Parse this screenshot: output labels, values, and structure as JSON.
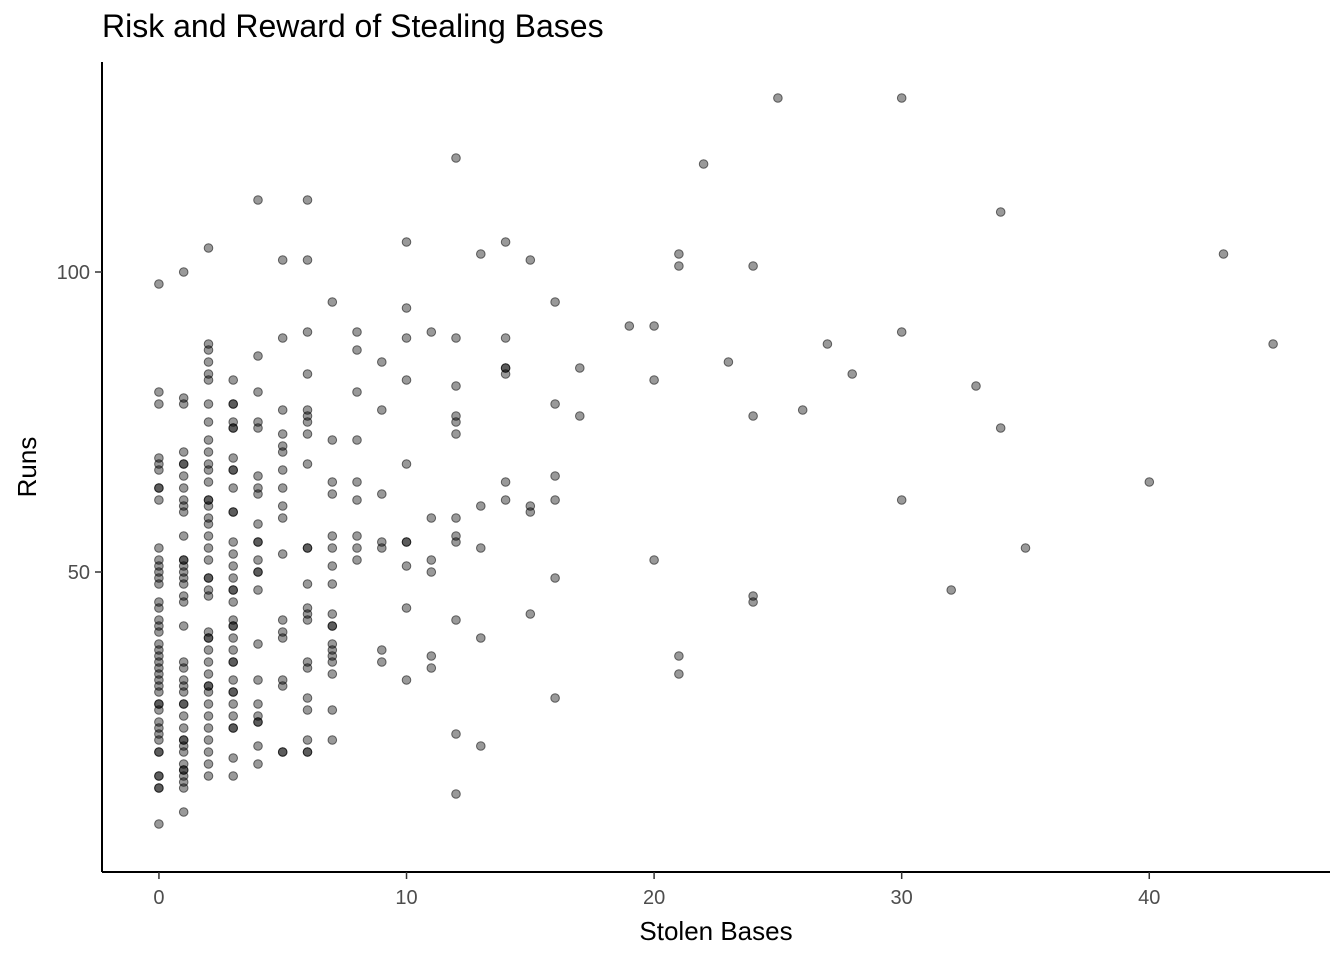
{
  "chart_data": {
    "type": "scatter",
    "title": "Risk and Reward of Stealing Bases",
    "xlabel": "Stolen Bases",
    "ylabel": "Runs",
    "xlim": [
      -2.3,
      47.3
    ],
    "ylim": [
      0,
      135
    ],
    "xticks": [
      0,
      10,
      20,
      30,
      40
    ],
    "yticks": [
      50,
      100
    ],
    "grid": false,
    "point_color": "#000000",
    "point_alpha": 0.4,
    "points": [
      [
        0,
        98
      ],
      [
        0,
        80
      ],
      [
        0,
        78
      ],
      [
        0,
        69
      ],
      [
        0,
        68
      ],
      [
        0,
        67
      ],
      [
        0,
        64
      ],
      [
        0,
        64
      ],
      [
        0,
        62
      ],
      [
        0,
        54
      ],
      [
        0,
        52
      ],
      [
        0,
        51
      ],
      [
        0,
        50
      ],
      [
        0,
        49
      ],
      [
        0,
        48
      ],
      [
        0,
        45
      ],
      [
        0,
        44
      ],
      [
        0,
        42
      ],
      [
        0,
        41
      ],
      [
        0,
        40
      ],
      [
        0,
        38
      ],
      [
        0,
        37
      ],
      [
        0,
        36
      ],
      [
        0,
        35
      ],
      [
        0,
        34
      ],
      [
        0,
        33
      ],
      [
        0,
        32
      ],
      [
        0,
        31
      ],
      [
        0,
        30
      ],
      [
        0,
        28
      ],
      [
        0,
        28
      ],
      [
        0,
        27
      ],
      [
        0,
        25
      ],
      [
        0,
        24
      ],
      [
        0,
        23
      ],
      [
        0,
        22
      ],
      [
        0,
        20
      ],
      [
        0,
        20
      ],
      [
        0,
        16
      ],
      [
        0,
        16
      ],
      [
        0,
        14
      ],
      [
        0,
        14
      ],
      [
        0,
        8
      ],
      [
        1,
        100
      ],
      [
        1,
        79
      ],
      [
        1,
        78
      ],
      [
        1,
        70
      ],
      [
        1,
        68
      ],
      [
        1,
        68
      ],
      [
        1,
        66
      ],
      [
        1,
        64
      ],
      [
        1,
        62
      ],
      [
        1,
        61
      ],
      [
        1,
        60
      ],
      [
        1,
        56
      ],
      [
        1,
        52
      ],
      [
        1,
        52
      ],
      [
        1,
        51
      ],
      [
        1,
        50
      ],
      [
        1,
        49
      ],
      [
        1,
        48
      ],
      [
        1,
        46
      ],
      [
        1,
        45
      ],
      [
        1,
        41
      ],
      [
        1,
        35
      ],
      [
        1,
        34
      ],
      [
        1,
        32
      ],
      [
        1,
        31
      ],
      [
        1,
        30
      ],
      [
        1,
        28
      ],
      [
        1,
        28
      ],
      [
        1,
        26
      ],
      [
        1,
        24
      ],
      [
        1,
        22
      ],
      [
        1,
        22
      ],
      [
        1,
        21
      ],
      [
        1,
        20
      ],
      [
        1,
        18
      ],
      [
        1,
        17
      ],
      [
        1,
        17
      ],
      [
        1,
        16
      ],
      [
        1,
        15
      ],
      [
        1,
        14
      ],
      [
        1,
        10
      ],
      [
        2,
        104
      ],
      [
        2,
        88
      ],
      [
        2,
        87
      ],
      [
        2,
        85
      ],
      [
        2,
        83
      ],
      [
        2,
        82
      ],
      [
        2,
        78
      ],
      [
        2,
        75
      ],
      [
        2,
        72
      ],
      [
        2,
        70
      ],
      [
        2,
        68
      ],
      [
        2,
        67
      ],
      [
        2,
        65
      ],
      [
        2,
        62
      ],
      [
        2,
        62
      ],
      [
        2,
        61
      ],
      [
        2,
        59
      ],
      [
        2,
        58
      ],
      [
        2,
        56
      ],
      [
        2,
        54
      ],
      [
        2,
        52
      ],
      [
        2,
        49
      ],
      [
        2,
        49
      ],
      [
        2,
        47
      ],
      [
        2,
        46
      ],
      [
        2,
        40
      ],
      [
        2,
        39
      ],
      [
        2,
        39
      ],
      [
        2,
        37
      ],
      [
        2,
        35
      ],
      [
        2,
        33
      ],
      [
        2,
        31
      ],
      [
        2,
        31
      ],
      [
        2,
        30
      ],
      [
        2,
        28
      ],
      [
        2,
        26
      ],
      [
        2,
        24
      ],
      [
        2,
        22
      ],
      [
        2,
        20
      ],
      [
        2,
        18
      ],
      [
        2,
        16
      ],
      [
        3,
        82
      ],
      [
        3,
        78
      ],
      [
        3,
        78
      ],
      [
        3,
        75
      ],
      [
        3,
        74
      ],
      [
        3,
        74
      ],
      [
        3,
        69
      ],
      [
        3,
        67
      ],
      [
        3,
        67
      ],
      [
        3,
        64
      ],
      [
        3,
        60
      ],
      [
        3,
        60
      ],
      [
        3,
        55
      ],
      [
        3,
        53
      ],
      [
        3,
        51
      ],
      [
        3,
        49
      ],
      [
        3,
        47
      ],
      [
        3,
        47
      ],
      [
        3,
        45
      ],
      [
        3,
        42
      ],
      [
        3,
        41
      ],
      [
        3,
        41
      ],
      [
        3,
        39
      ],
      [
        3,
        37
      ],
      [
        3,
        35
      ],
      [
        3,
        35
      ],
      [
        3,
        32
      ],
      [
        3,
        30
      ],
      [
        3,
        30
      ],
      [
        3,
        28
      ],
      [
        3,
        26
      ],
      [
        3,
        24
      ],
      [
        3,
        24
      ],
      [
        3,
        19
      ],
      [
        3,
        16
      ],
      [
        4,
        112
      ],
      [
        4,
        86
      ],
      [
        4,
        80
      ],
      [
        4,
        75
      ],
      [
        4,
        74
      ],
      [
        4,
        66
      ],
      [
        4,
        64
      ],
      [
        4,
        63
      ],
      [
        4,
        58
      ],
      [
        4,
        55
      ],
      [
        4,
        55
      ],
      [
        4,
        52
      ],
      [
        4,
        50
      ],
      [
        4,
        50
      ],
      [
        4,
        47
      ],
      [
        4,
        38
      ],
      [
        4,
        32
      ],
      [
        4,
        28
      ],
      [
        4,
        26
      ],
      [
        4,
        25
      ],
      [
        4,
        25
      ],
      [
        4,
        21
      ],
      [
        4,
        18
      ],
      [
        5,
        102
      ],
      [
        5,
        89
      ],
      [
        5,
        77
      ],
      [
        5,
        73
      ],
      [
        5,
        71
      ],
      [
        5,
        70
      ],
      [
        5,
        67
      ],
      [
        5,
        64
      ],
      [
        5,
        61
      ],
      [
        5,
        59
      ],
      [
        5,
        53
      ],
      [
        5,
        42
      ],
      [
        5,
        40
      ],
      [
        5,
        39
      ],
      [
        5,
        32
      ],
      [
        5,
        31
      ],
      [
        5,
        20
      ],
      [
        5,
        20
      ],
      [
        6,
        112
      ],
      [
        6,
        102
      ],
      [
        6,
        90
      ],
      [
        6,
        83
      ],
      [
        6,
        77
      ],
      [
        6,
        76
      ],
      [
        6,
        75
      ],
      [
        6,
        73
      ],
      [
        6,
        68
      ],
      [
        6,
        54
      ],
      [
        6,
        54
      ],
      [
        6,
        48
      ],
      [
        6,
        44
      ],
      [
        6,
        43
      ],
      [
        6,
        42
      ],
      [
        6,
        35
      ],
      [
        6,
        34
      ],
      [
        6,
        29
      ],
      [
        6,
        27
      ],
      [
        6,
        22
      ],
      [
        6,
        20
      ],
      [
        6,
        20
      ],
      [
        7,
        95
      ],
      [
        7,
        72
      ],
      [
        7,
        65
      ],
      [
        7,
        63
      ],
      [
        7,
        56
      ],
      [
        7,
        54
      ],
      [
        7,
        51
      ],
      [
        7,
        48
      ],
      [
        7,
        43
      ],
      [
        7,
        41
      ],
      [
        7,
        41
      ],
      [
        7,
        38
      ],
      [
        7,
        37
      ],
      [
        7,
        36
      ],
      [
        7,
        35
      ],
      [
        7,
        33
      ],
      [
        7,
        27
      ],
      [
        7,
        22
      ],
      [
        8,
        90
      ],
      [
        8,
        87
      ],
      [
        8,
        80
      ],
      [
        8,
        72
      ],
      [
        8,
        65
      ],
      [
        8,
        62
      ],
      [
        8,
        56
      ],
      [
        8,
        54
      ],
      [
        8,
        52
      ],
      [
        9,
        85
      ],
      [
        9,
        77
      ],
      [
        9,
        63
      ],
      [
        9,
        55
      ],
      [
        9,
        54
      ],
      [
        9,
        37
      ],
      [
        9,
        35
      ],
      [
        10,
        105
      ],
      [
        10,
        94
      ],
      [
        10,
        89
      ],
      [
        10,
        82
      ],
      [
        10,
        68
      ],
      [
        10,
        55
      ],
      [
        10,
        55
      ],
      [
        10,
        51
      ],
      [
        10,
        44
      ],
      [
        10,
        32
      ],
      [
        11,
        90
      ],
      [
        11,
        59
      ],
      [
        11,
        52
      ],
      [
        11,
        50
      ],
      [
        11,
        36
      ],
      [
        11,
        34
      ],
      [
        12,
        119
      ],
      [
        12,
        89
      ],
      [
        12,
        81
      ],
      [
        12,
        76
      ],
      [
        12,
        75
      ],
      [
        12,
        73
      ],
      [
        12,
        59
      ],
      [
        12,
        56
      ],
      [
        12,
        55
      ],
      [
        12,
        42
      ],
      [
        12,
        23
      ],
      [
        12,
        13
      ],
      [
        13,
        103
      ],
      [
        13,
        61
      ],
      [
        13,
        54
      ],
      [
        13,
        39
      ],
      [
        13,
        21
      ],
      [
        14,
        105
      ],
      [
        14,
        89
      ],
      [
        14,
        84
      ],
      [
        14,
        84
      ],
      [
        14,
        83
      ],
      [
        14,
        65
      ],
      [
        14,
        62
      ],
      [
        15,
        102
      ],
      [
        15,
        61
      ],
      [
        15,
        60
      ],
      [
        15,
        43
      ],
      [
        16,
        95
      ],
      [
        16,
        78
      ],
      [
        16,
        66
      ],
      [
        16,
        62
      ],
      [
        16,
        49
      ],
      [
        16,
        29
      ],
      [
        17,
        84
      ],
      [
        17,
        76
      ],
      [
        19,
        91
      ],
      [
        20,
        91
      ],
      [
        20,
        82
      ],
      [
        20,
        52
      ],
      [
        21,
        103
      ],
      [
        21,
        101
      ],
      [
        21,
        36
      ],
      [
        21,
        33
      ],
      [
        22,
        118
      ],
      [
        23,
        85
      ],
      [
        24,
        101
      ],
      [
        24,
        76
      ],
      [
        24,
        46
      ],
      [
        24,
        45
      ],
      [
        25,
        129
      ],
      [
        26,
        77
      ],
      [
        27,
        88
      ],
      [
        28,
        83
      ],
      [
        30,
        129
      ],
      [
        30,
        90
      ],
      [
        30,
        62
      ],
      [
        32,
        47
      ],
      [
        33,
        81
      ],
      [
        34,
        110
      ],
      [
        34,
        74
      ],
      [
        35,
        54
      ],
      [
        40,
        65
      ],
      [
        43,
        103
      ],
      [
        45,
        88
      ]
    ]
  }
}
